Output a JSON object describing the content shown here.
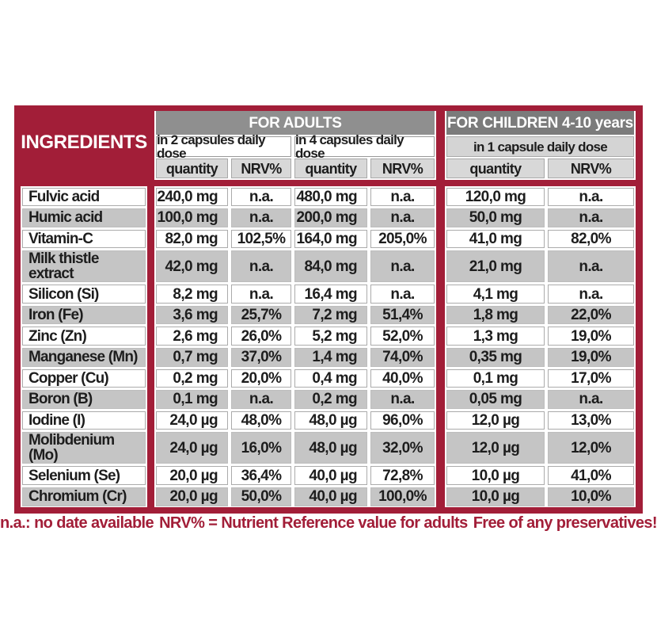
{
  "colors": {
    "red": "#A21E38",
    "adults_bar_gray": "#8f8f8f",
    "children_bar_gray": "#7b7b7b",
    "subheader_gray": "#d8d8d8",
    "row_gray": "#c5c5c5"
  },
  "table": {
    "ingredients_header": "INGREDIENTS",
    "adults": {
      "title": "FOR ADULTS",
      "col1": "in 2 capsules daily dose",
      "col2": "in 4 capsules daily dose"
    },
    "children": {
      "title": "FOR CHILDREN 4-10 years",
      "col": "in 1 capsule daily dose"
    },
    "subheaders": {
      "quantity": "quantity",
      "nrv": "NRV%"
    },
    "rows": [
      {
        "name": "Fulvic acid",
        "a2_qty": "240,0 mg",
        "a2_nrv": "n.a.",
        "a4_qty": "480,0 mg",
        "a4_nrv": "n.a.",
        "c1_qty": "120,0 mg",
        "c1_nrv": "n.a."
      },
      {
        "name": "Humic acid",
        "a2_qty": "100,0 mg",
        "a2_nrv": "n.a.",
        "a4_qty": "200,0 mg",
        "a4_nrv": "n.a.",
        "c1_qty": "50,0 mg",
        "c1_nrv": "n.a."
      },
      {
        "name": "Vitamin-C",
        "a2_qty": "82,0 mg",
        "a2_nrv": "102,5%",
        "a4_qty": "164,0 mg",
        "a4_nrv": "205,0%",
        "c1_qty": "41,0 mg",
        "c1_nrv": "82,0%"
      },
      {
        "name": "Milk thistle extract",
        "a2_qty": "42,0 mg",
        "a2_nrv": "n.a.",
        "a4_qty": "84,0 mg",
        "a4_nrv": "n.a.",
        "c1_qty": "21,0 mg",
        "c1_nrv": "n.a."
      },
      {
        "name": "Silicon (Si)",
        "a2_qty": "8,2 mg",
        "a2_nrv": "n.a.",
        "a4_qty": "16,4 mg",
        "a4_nrv": "n.a.",
        "c1_qty": "4,1 mg",
        "c1_nrv": "n.a."
      },
      {
        "name": "Iron (Fe)",
        "a2_qty": "3,6 mg",
        "a2_nrv": "25,7%",
        "a4_qty": "7,2 mg",
        "a4_nrv": "51,4%",
        "c1_qty": "1,8 mg",
        "c1_nrv": "22,0%"
      },
      {
        "name": "Zinc (Zn)",
        "a2_qty": "2,6 mg",
        "a2_nrv": "26,0%",
        "a4_qty": "5,2 mg",
        "a4_nrv": "52,0%",
        "c1_qty": "1,3 mg",
        "c1_nrv": "19,0%"
      },
      {
        "name": "Manganese (Mn)",
        "a2_qty": "0,7 mg",
        "a2_nrv": "37,0%",
        "a4_qty": "1,4 mg",
        "a4_nrv": "74,0%",
        "c1_qty": "0,35 mg",
        "c1_nrv": "19,0%"
      },
      {
        "name": "Copper (Cu)",
        "a2_qty": "0,2 mg",
        "a2_nrv": "20,0%",
        "a4_qty": "0,4 mg",
        "a4_nrv": "40,0%",
        "c1_qty": "0,1 mg",
        "c1_nrv": "17,0%"
      },
      {
        "name": "Boron (B)",
        "a2_qty": "0,1 mg",
        "a2_nrv": "n.a.",
        "a4_qty": "0,2 mg",
        "a4_nrv": "n.a.",
        "c1_qty": "0,05 mg",
        "c1_nrv": "n.a."
      },
      {
        "name": "Iodine (I)",
        "a2_qty": "24,0 µg",
        "a2_nrv": "48,0%",
        "a4_qty": "48,0 µg",
        "a4_nrv": "96,0%",
        "c1_qty": "12,0 µg",
        "c1_nrv": "13,0%"
      },
      {
        "name": "Molibdenium (Mo)",
        "a2_qty": "24,0 µg",
        "a2_nrv": "16,0%",
        "a4_qty": "48,0 µg",
        "a4_nrv": "32,0%",
        "c1_qty": "12,0 µg",
        "c1_nrv": "12,0%"
      },
      {
        "name": "Selenium (Se)",
        "a2_qty": "20,0 µg",
        "a2_nrv": "36,4%",
        "a4_qty": "40,0 µg",
        "a4_nrv": "72,8%",
        "c1_qty": "10,0 µg",
        "c1_nrv": "41,0%"
      },
      {
        "name": "Chromium (Cr)",
        "a2_qty": "20,0 µg",
        "a2_nrv": "50,0%",
        "a4_qty": "40,0 µg",
        "a4_nrv": "100,0%",
        "c1_qty": "10,0 µg",
        "c1_nrv": "10,0%"
      }
    ]
  },
  "footer": {
    "left": "n.a.: no date available",
    "center": "NRV% = Nutrient Reference value for adults",
    "right": "Free of any preservatives!"
  }
}
